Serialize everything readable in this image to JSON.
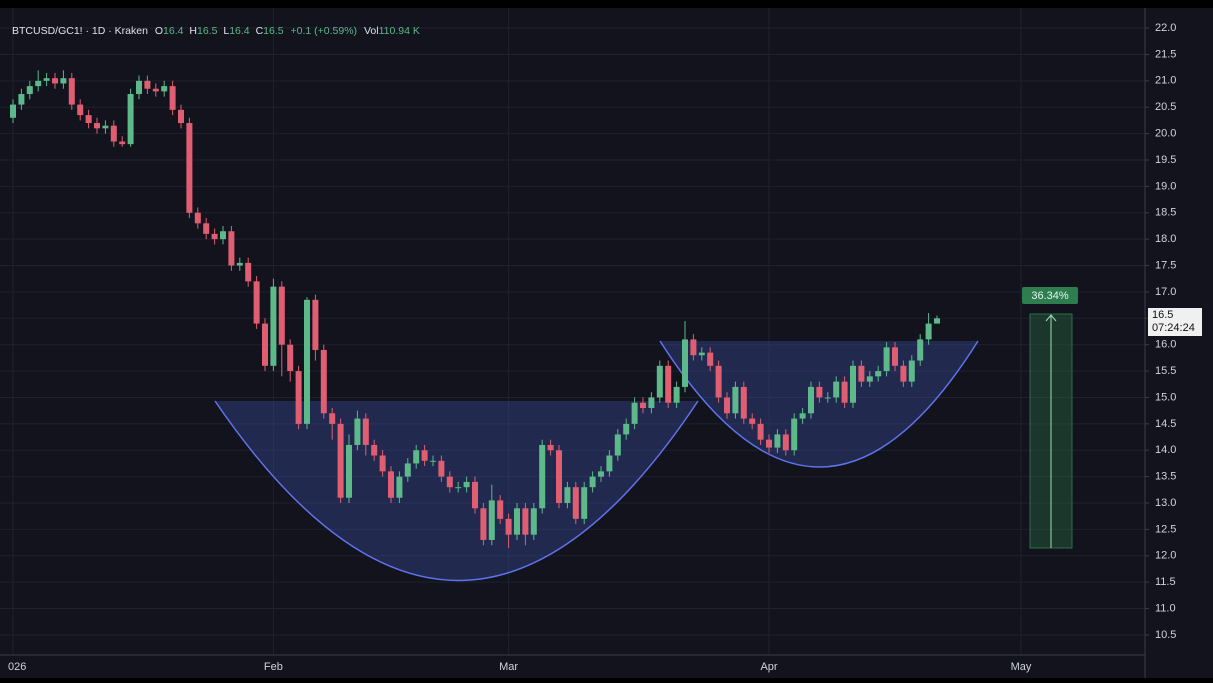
{
  "chart_data": {
    "type": "candlestick",
    "header": {
      "symbol": "BTCUSD/GC1! · 1D · Kraken",
      "ohlc_legend": [
        {
          "label": "O",
          "value": "16.4"
        },
        {
          "label": "H",
          "value": "16.5"
        },
        {
          "label": "L",
          "value": "16.4"
        },
        {
          "label": "C",
          "value": "16.5"
        }
      ],
      "change": "+0.1 (+0.59%)",
      "volume_label": "Vol",
      "volume": "110.94 K"
    },
    "categories": [
      "026",
      null,
      null,
      null,
      null,
      null,
      null,
      null,
      null,
      null,
      null,
      null,
      null,
      null,
      null,
      null,
      null,
      null,
      null,
      null,
      null,
      null,
      null,
      null,
      null,
      null,
      null,
      null,
      null,
      null,
      null,
      "Feb",
      null,
      null,
      null,
      null,
      null,
      null,
      null,
      null,
      null,
      null,
      null,
      null,
      null,
      null,
      null,
      null,
      null,
      null,
      null,
      null,
      null,
      null,
      null,
      null,
      null,
      null,
      null,
      "Mar",
      null,
      null,
      null,
      null,
      null,
      null,
      null,
      null,
      null,
      null,
      null,
      null,
      null,
      null,
      null,
      null,
      null,
      null,
      null,
      null,
      null,
      null,
      null,
      null,
      null,
      null,
      null,
      null,
      null,
      null,
      "Apr",
      null,
      null,
      null,
      null,
      null,
      null,
      null,
      null,
      null,
      null,
      null,
      null,
      null,
      null,
      null,
      null,
      null,
      null,
      null,
      null,
      null,
      null,
      null,
      null,
      null,
      null,
      null,
      null,
      null,
      "May"
    ],
    "open": [
      20.3,
      20.55,
      20.75,
      20.9,
      21.0,
      21.05,
      20.95,
      21.05,
      20.55,
      20.35,
      20.2,
      20.1,
      20.15,
      19.85,
      19.8,
      20.75,
      21.0,
      20.85,
      20.8,
      20.9,
      20.45,
      20.2,
      18.5,
      18.3,
      18.1,
      18.0,
      18.15,
      17.5,
      17.55,
      17.2,
      16.4,
      15.6,
      17.1,
      16.0,
      15.5,
      14.5,
      16.85,
      15.9,
      14.7,
      14.5,
      13.1,
      14.1,
      14.6,
      14.1,
      13.9,
      13.6,
      13.1,
      13.5,
      13.75,
      14.0,
      13.8,
      13.8,
      13.5,
      13.3,
      13.3,
      13.4,
      12.9,
      12.3,
      13.05,
      12.7,
      12.4,
      12.9,
      12.4,
      12.9,
      14.1,
      14.0,
      13.0,
      13.3,
      12.7,
      13.3,
      13.5,
      13.6,
      13.9,
      14.3,
      14.5,
      14.9,
      14.8,
      15.0,
      15.6,
      14.9,
      15.2,
      16.1,
      15.8,
      15.85,
      15.6,
      15.0,
      14.7,
      15.2,
      14.6,
      14.5,
      14.2,
      14.05,
      14.3,
      14.0,
      14.6,
      14.7,
      15.2,
      15.0,
      15.0,
      15.3,
      14.9,
      15.6,
      15.3,
      15.4,
      15.5,
      15.95,
      15.6,
      15.3,
      15.7,
      16.1,
      16.4,
      null,
      null,
      null,
      null,
      null,
      null,
      null,
      null,
      null,
      null
    ],
    "high": [
      20.65,
      20.85,
      21.0,
      21.2,
      21.15,
      21.15,
      21.2,
      21.15,
      20.65,
      20.45,
      20.3,
      20.25,
      20.25,
      19.95,
      20.85,
      21.1,
      21.1,
      20.95,
      21.0,
      21.0,
      20.55,
      20.3,
      18.6,
      18.4,
      18.2,
      18.25,
      18.25,
      17.65,
      17.65,
      17.3,
      16.5,
      17.25,
      17.2,
      16.1,
      15.6,
      16.9,
      16.95,
      16.0,
      14.8,
      14.6,
      14.3,
      14.75,
      14.7,
      14.2,
      14.0,
      13.7,
      13.6,
      13.85,
      14.1,
      14.1,
      13.9,
      13.9,
      13.6,
      13.4,
      13.5,
      13.5,
      13.0,
      13.35,
      13.15,
      12.8,
      13.0,
      13.0,
      13.0,
      14.2,
      14.2,
      14.1,
      13.4,
      13.4,
      13.4,
      13.6,
      13.7,
      14.0,
      14.4,
      14.6,
      15.0,
      15.0,
      15.1,
      15.7,
      15.7,
      15.3,
      16.45,
      16.2,
      15.95,
      15.95,
      15.7,
      15.1,
      15.3,
      15.3,
      14.7,
      14.6,
      14.3,
      14.4,
      14.4,
      14.7,
      14.8,
      15.3,
      15.3,
      15.1,
      15.4,
      15.4,
      15.7,
      15.7,
      15.5,
      15.6,
      16.05,
      16.05,
      15.7,
      15.8,
      16.2,
      16.6,
      16.55,
      null,
      null,
      null,
      null,
      null,
      null,
      null,
      null,
      null,
      null
    ],
    "low": [
      20.2,
      20.45,
      20.65,
      20.8,
      20.9,
      20.85,
      20.85,
      20.45,
      20.25,
      20.1,
      20.0,
      20.0,
      19.75,
      19.75,
      19.75,
      20.65,
      20.75,
      20.7,
      20.7,
      20.35,
      20.1,
      18.4,
      18.2,
      18.0,
      17.9,
      17.9,
      17.4,
      17.4,
      17.1,
      16.3,
      15.5,
      15.5,
      15.4,
      15.3,
      14.4,
      14.4,
      15.7,
      14.6,
      14.2,
      13.0,
      13.0,
      14.0,
      13.9,
      13.8,
      13.5,
      13.0,
      13.0,
      13.4,
      13.65,
      13.7,
      13.7,
      13.4,
      13.2,
      13.2,
      13.2,
      12.8,
      12.2,
      12.2,
      12.6,
      12.15,
      12.3,
      12.2,
      12.3,
      12.8,
      13.9,
      12.9,
      12.9,
      12.6,
      12.6,
      13.2,
      13.4,
      13.5,
      13.8,
      14.2,
      14.4,
      14.7,
      14.7,
      14.9,
      14.8,
      14.8,
      15.1,
      15.7,
      15.7,
      15.5,
      14.9,
      14.6,
      14.6,
      14.5,
      14.4,
      14.1,
      13.95,
      13.95,
      13.9,
      13.9,
      14.5,
      14.6,
      14.9,
      14.9,
      14.9,
      14.8,
      14.8,
      15.2,
      15.2,
      15.3,
      15.4,
      15.5,
      15.2,
      15.2,
      15.6,
      16.0,
      16.4,
      null,
      null,
      null,
      null,
      null,
      null,
      null,
      null,
      null,
      null
    ],
    "close": [
      20.55,
      20.75,
      20.9,
      21.0,
      21.05,
      20.95,
      21.05,
      20.55,
      20.35,
      20.2,
      20.1,
      20.15,
      19.85,
      19.8,
      20.75,
      21.0,
      20.85,
      20.8,
      20.9,
      20.45,
      20.2,
      18.5,
      18.3,
      18.1,
      18.0,
      18.15,
      17.5,
      17.55,
      17.2,
      16.4,
      15.6,
      17.1,
      16.0,
      15.5,
      14.5,
      16.85,
      15.9,
      14.7,
      14.5,
      13.1,
      14.1,
      14.6,
      14.1,
      13.9,
      13.6,
      13.1,
      13.5,
      13.75,
      14.0,
      13.8,
      13.8,
      13.5,
      13.3,
      13.3,
      13.4,
      12.9,
      12.3,
      13.05,
      12.7,
      12.4,
      12.9,
      12.4,
      12.9,
      14.1,
      14.0,
      13.0,
      13.3,
      12.7,
      13.3,
      13.5,
      13.6,
      13.9,
      14.3,
      14.5,
      14.9,
      14.8,
      15.0,
      15.6,
      14.9,
      15.2,
      16.1,
      15.8,
      15.85,
      15.6,
      15.0,
      14.7,
      15.2,
      14.6,
      14.5,
      14.2,
      14.05,
      14.3,
      14.0,
      14.6,
      14.7,
      15.2,
      15.0,
      15.0,
      15.3,
      14.9,
      15.6,
      15.3,
      15.4,
      15.5,
      15.95,
      15.6,
      15.3,
      15.7,
      16.1,
      16.4,
      16.5,
      null,
      null,
      null,
      null,
      null,
      null,
      null,
      null,
      null,
      null
    ],
    "up_color": "#5db88a",
    "down_color": "#e05e72",
    "ylim": [
      10.12,
      22.38
    ],
    "yticks": [
      {
        "value": 10.5,
        "label": "10.5"
      },
      {
        "value": 11,
        "label": "11.0"
      },
      11.5,
      {
        "value": 12,
        "label": "12.0"
      },
      12.5,
      {
        "value": 13,
        "label": "13.0"
      },
      13.5,
      {
        "value": 14,
        "label": "14.0"
      },
      14.5,
      {
        "value": 15,
        "label": "15.0"
      },
      15.5,
      {
        "value": 16,
        "label": "16.0"
      },
      16.5,
      {
        "value": 17,
        "label": "17.0"
      },
      17.5,
      {
        "value": 18,
        "label": "18.0"
      },
      18.5,
      {
        "value": 19,
        "label": "19.0"
      },
      19.5,
      {
        "value": 20,
        "label": "20.0"
      },
      20.5,
      {
        "value": 21,
        "label": "21.0"
      },
      21.5,
      {
        "value": 22,
        "label": "22.0"
      }
    ],
    "grid": true,
    "price_tag": {
      "price": "16.5",
      "countdown": "07:24:24"
    },
    "measure_label": "36.34%"
  }
}
